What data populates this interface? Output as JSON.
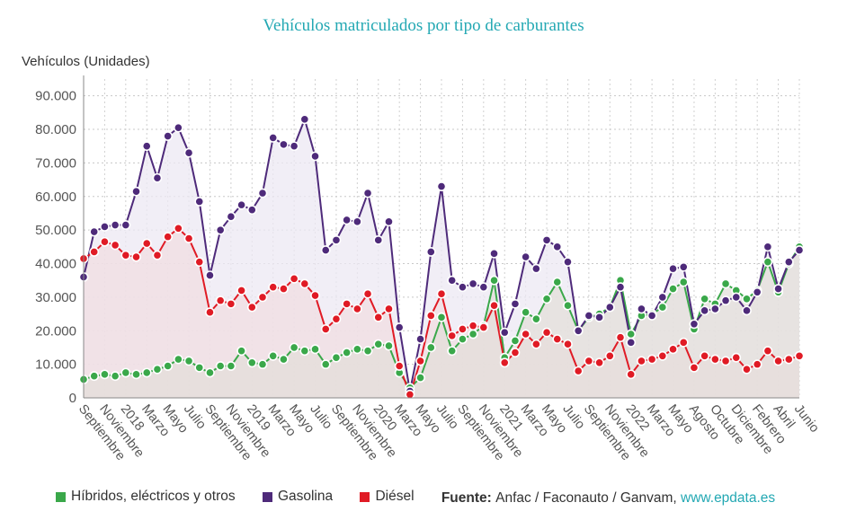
{
  "chart_data": {
    "type": "line",
    "title": "Vehículos matriculados por tipo de carburantes",
    "ylabel": "Vehículos (Unidades)",
    "ylim": [
      0,
      95000
    ],
    "yticks": [
      0,
      10000,
      20000,
      30000,
      40000,
      50000,
      60000,
      70000,
      80000,
      90000
    ],
    "ytick_labels": [
      "0",
      "10.000",
      "20.000",
      "30.000",
      "40.000",
      "50.000",
      "60.000",
      "70.000",
      "80.000",
      "90.000"
    ],
    "grid": true,
    "legend_position": "bottom",
    "x_labels": [
      "Septiembre",
      "Noviembre",
      "2018",
      "Marzo",
      "Mayo",
      "Julio",
      "Septiembre",
      "Noviembre",
      "2019",
      "Marzo",
      "Mayo",
      "Julio",
      "Septiembre",
      "Noviembre",
      "2020",
      "Marzo",
      "Mayo",
      "Julio",
      "Septiembre",
      "Noviembre",
      "2021",
      "Marzo",
      "Mayo",
      "Julio",
      "Septiembre",
      "Noviembre",
      "2022",
      "Marzo",
      "Mayo",
      "Agosto",
      "Octubre",
      "Diciembre",
      "Febrero",
      "Abril",
      "Junio"
    ],
    "series": [
      {
        "name": "Gasolina",
        "color": "#4e2a7a",
        "fill": "#ece8f3",
        "values": [
          36000,
          49500,
          51000,
          51500,
          51500,
          61500,
          75000,
          65500,
          78000,
          80500,
          73000,
          58500,
          36500,
          50000,
          54000,
          57500,
          56000,
          61000,
          77500,
          75500,
          75000,
          83000,
          72000,
          44000,
          47000,
          53000,
          52500,
          61000,
          47000,
          52500,
          21000,
          2000,
          17500,
          43500,
          63000,
          35000,
          33000,
          34000,
          33000,
          43000,
          19500,
          28000,
          42000,
          38500,
          47000,
          45000,
          40500,
          20000,
          24500,
          24000,
          27000,
          33000,
          16500,
          26500,
          24500,
          30000,
          38500,
          39000,
          22000,
          26000,
          26500,
          29000,
          30000,
          26000,
          31500,
          45000,
          32500,
          40500,
          44000
        ]
      },
      {
        "name": "Diésel",
        "color": "#e01b25",
        "fill": "#f1dde1",
        "values": [
          41500,
          43500,
          46500,
          45500,
          42500,
          42000,
          46000,
          42500,
          48000,
          50500,
          47500,
          40500,
          25500,
          29000,
          28000,
          32000,
          27000,
          30000,
          33000,
          32500,
          35500,
          34000,
          30500,
          20500,
          23500,
          28000,
          26500,
          31000,
          24000,
          26500,
          9500,
          1000,
          11000,
          24500,
          31000,
          18500,
          20500,
          21500,
          21000,
          27500,
          10500,
          13500,
          19000,
          16000,
          19500,
          17500,
          16000,
          8000,
          11000,
          10500,
          12500,
          18000,
          7000,
          11000,
          11500,
          12500,
          14500,
          16500,
          9000,
          12500,
          11500,
          11000,
          12000,
          8500,
          10000,
          14000,
          11000,
          11500,
          12500
        ]
      },
      {
        "name": "Híbridos, eléctricos y otros",
        "color": "#3aa84a",
        "fill": "#e3ded8",
        "values": [
          5500,
          6500,
          7000,
          6500,
          7500,
          7000,
          7500,
          8500,
          9500,
          11500,
          11000,
          9000,
          7500,
          9500,
          9500,
          14000,
          10500,
          10000,
          12500,
          11500,
          15000,
          14000,
          14500,
          10000,
          12000,
          13500,
          14500,
          14000,
          16000,
          15500,
          7500,
          3000,
          6000,
          15000,
          24000,
          14000,
          17500,
          19000,
          21500,
          35000,
          12000,
          17000,
          25500,
          23500,
          29500,
          34500,
          27500,
          20000,
          24000,
          25000,
          27000,
          35000,
          19000,
          24500,
          25000,
          27000,
          32500,
          34500,
          20500,
          29500,
          28000,
          34000,
          32000,
          29500,
          32000,
          40500,
          31500,
          40000,
          45000
        ]
      }
    ]
  },
  "legend": {
    "items": [
      {
        "label": "Híbridos, eléctricos y otros",
        "color": "#3aa84a"
      },
      {
        "label": "Gasolina",
        "color": "#4e2a7a"
      },
      {
        "label": "Diésel",
        "color": "#e01b25"
      }
    ],
    "source_label": "Fuente:",
    "source_text": "Anfac / Faconauto / Ganvam,",
    "source_link": "www.epdata.es"
  }
}
